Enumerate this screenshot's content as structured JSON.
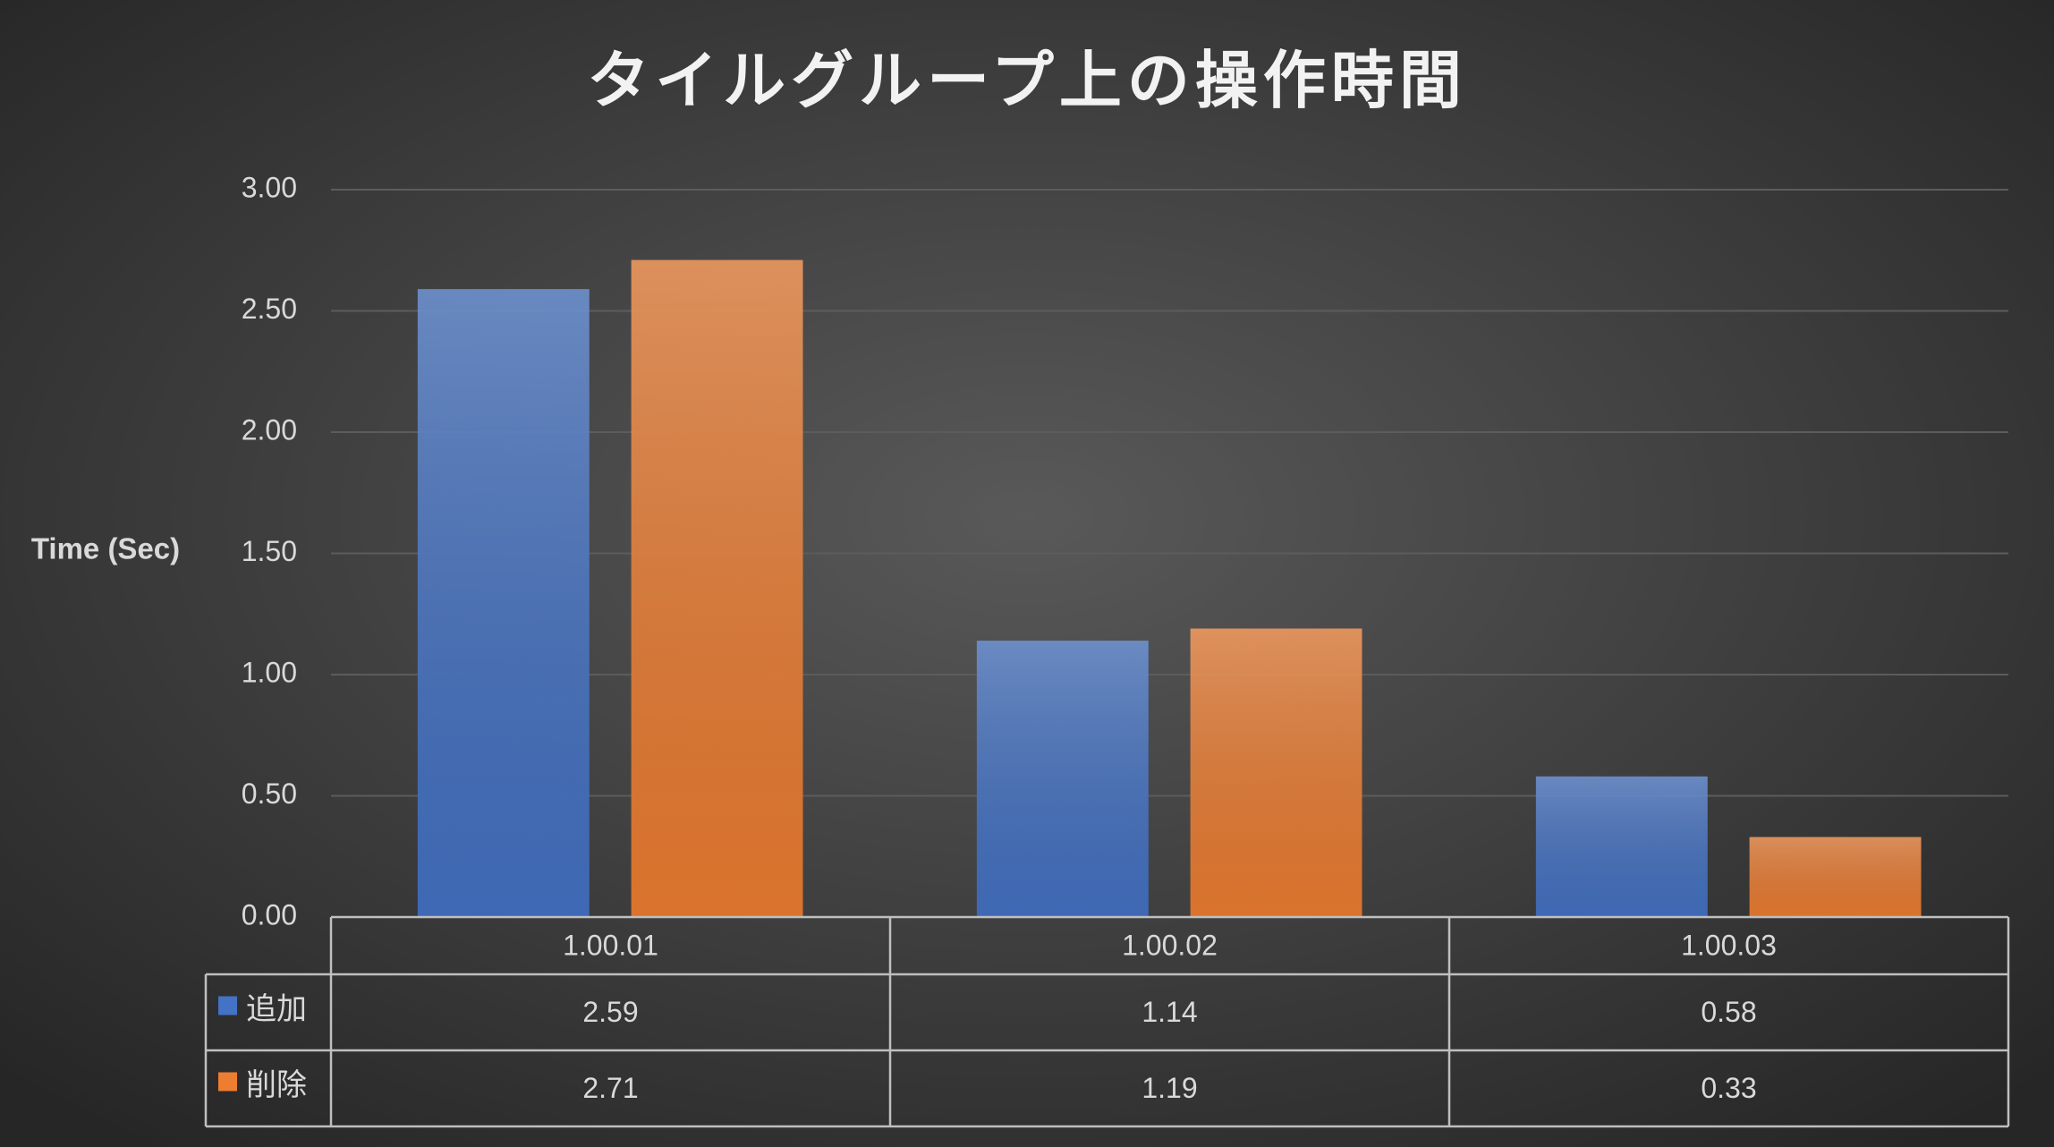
{
  "chart_data": {
    "type": "bar",
    "title": "タイルグループ上の操作時間",
    "y_label": "Time (Sec)",
    "categories": [
      "1.00.01",
      "1.00.02",
      "1.00.03"
    ],
    "series": [
      {
        "name": "追加",
        "color": "#4472c4",
        "values": [
          2.59,
          1.14,
          0.58
        ]
      },
      {
        "name": "削除",
        "color": "#ed7d31",
        "values": [
          2.71,
          1.19,
          0.33
        ]
      }
    ],
    "ylim": [
      0,
      3
    ],
    "yticks": [
      {
        "value": 0,
        "label": "0.00"
      },
      {
        "value": 0.5,
        "label": "0.50"
      },
      {
        "value": 1,
        "label": "1.00"
      },
      {
        "value": 1.5,
        "label": "1.50"
      },
      {
        "value": 2,
        "label": "2.00"
      },
      {
        "value": 2.5,
        "label": "2.50"
      },
      {
        "value": 3,
        "label": "3.00"
      }
    ],
    "grid": true,
    "data_table": true
  }
}
